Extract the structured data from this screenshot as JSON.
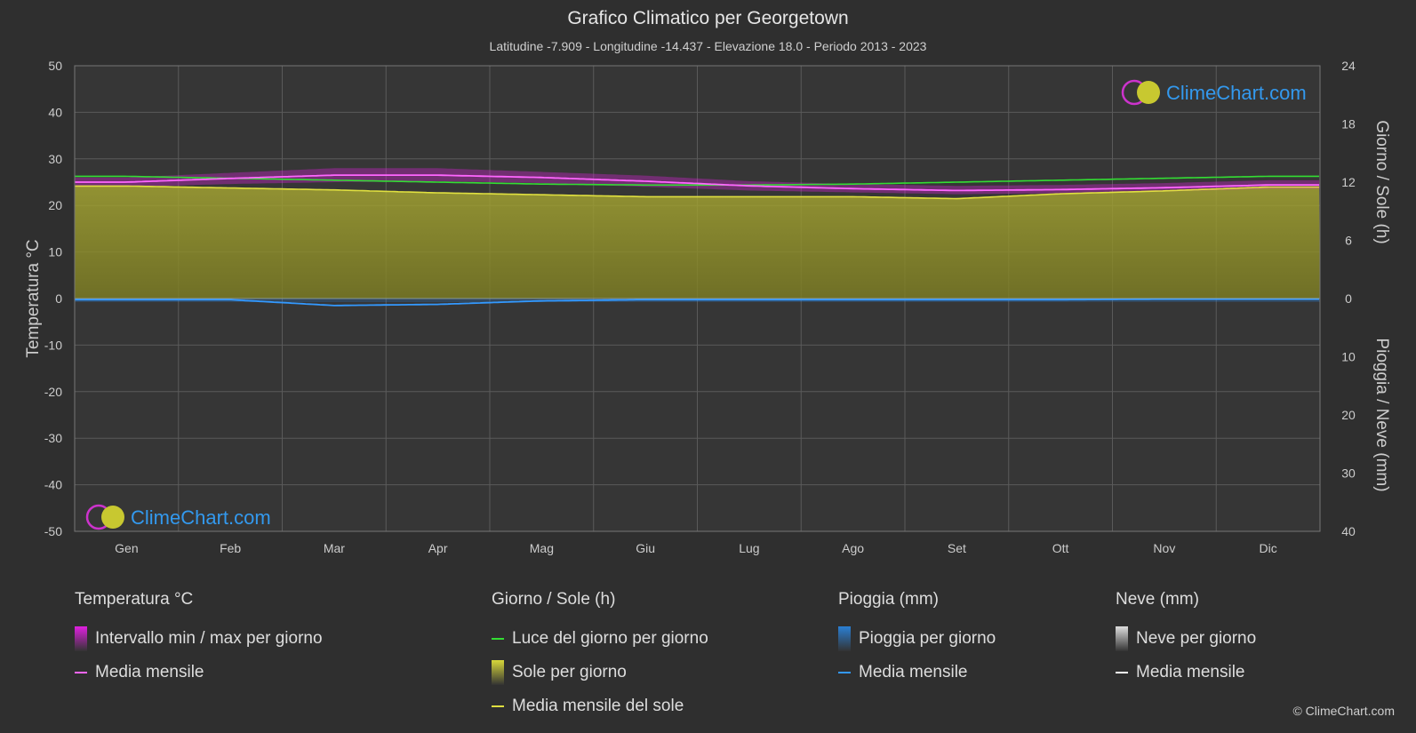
{
  "title": "Grafico Climatico per Georgetown",
  "subtitle": "Latitudine -7.909 - Longitudine -14.437 - Elevazione 18.0 - Periodo 2013 - 2023",
  "watermark": "ClimeChart.com",
  "copyright": "© ClimeChart.com",
  "colors": {
    "background": "#2f2f2f",
    "plot_bg": "#363636",
    "grid": "#5a5a5a",
    "temp_range": "#e020e0",
    "temp_mean": "#ff66ff",
    "daylight": "#33dd33",
    "sunshine_fill": "#9a9a2a",
    "sunshine_mean": "#e0e040",
    "rain": "#2a7fd4",
    "rain_mean": "#3399ff",
    "snow_mean": "#ffffff",
    "watermark": "#3399ee"
  },
  "legend": {
    "groups": [
      {
        "title": "Temperatura °C",
        "items": [
          {
            "label": "Intervallo min / max per giorno",
            "swatch": "box",
            "color": "#e020e0"
          },
          {
            "label": "Media mensile",
            "swatch": "line",
            "color": "#ff66ff"
          }
        ]
      },
      {
        "title": "Giorno / Sole (h)",
        "items": [
          {
            "label": "Luce del giorno per giorno",
            "swatch": "line",
            "color": "#33dd33"
          },
          {
            "label": "Sole per giorno",
            "swatch": "box",
            "color": "#d8d83a"
          },
          {
            "label": "Media mensile del sole",
            "swatch": "line",
            "color": "#e0e040"
          }
        ]
      },
      {
        "title": "Pioggia (mm)",
        "items": [
          {
            "label": "Pioggia per giorno",
            "swatch": "box",
            "color": "#2a7fd4"
          },
          {
            "label": "Media mensile",
            "swatch": "line",
            "color": "#3399ff"
          }
        ]
      },
      {
        "title": "Neve (mm)",
        "items": [
          {
            "label": "Neve per giorno",
            "swatch": "box",
            "color": "#dddddd"
          },
          {
            "label": "Media mensile",
            "swatch": "line",
            "color": "#ffffff"
          }
        ]
      }
    ]
  },
  "chart_data": {
    "type": "line",
    "categories": [
      "Gen",
      "Feb",
      "Mar",
      "Apr",
      "Mag",
      "Giu",
      "Lug",
      "Ago",
      "Set",
      "Ott",
      "Nov",
      "Dic"
    ],
    "y_left": {
      "label": "Temperatura °C",
      "range": [
        -50,
        50
      ],
      "ticks": [
        50,
        40,
        30,
        20,
        10,
        0,
        -10,
        -20,
        -30,
        -40,
        -50
      ]
    },
    "y_right_top": {
      "label": "Giorno / Sole (h)",
      "range": [
        0,
        24
      ],
      "ticks": [
        24,
        18,
        12,
        6,
        0
      ]
    },
    "y_right_bottom": {
      "label": "Pioggia / Neve (mm)",
      "range": [
        0,
        40
      ],
      "ticks": [
        0,
        10,
        20,
        30,
        40
      ]
    },
    "series": [
      {
        "name": "Media mensile",
        "axis": "temperature",
        "values": [
          25.0,
          25.8,
          26.5,
          26.5,
          26.0,
          25.2,
          24.2,
          23.6,
          23.2,
          23.4,
          23.8,
          24.4
        ]
      },
      {
        "name": "Luce del giorno per giorno",
        "axis": "hours",
        "values": [
          12.6,
          12.4,
          12.2,
          12.0,
          11.8,
          11.7,
          11.7,
          11.8,
          12.0,
          12.2,
          12.4,
          12.6
        ]
      },
      {
        "name": "Media mensile del sole",
        "axis": "hours",
        "values": [
          11.6,
          11.4,
          11.2,
          10.9,
          10.7,
          10.5,
          10.5,
          10.5,
          10.3,
          10.8,
          11.1,
          11.5
        ]
      },
      {
        "name": "Pioggia media mensile",
        "axis": "precipitation",
        "values": [
          0.2,
          0.2,
          1.2,
          1.0,
          0.4,
          0.2,
          0.2,
          0.2,
          0.2,
          0.2,
          0.1,
          0.1
        ]
      },
      {
        "name": "Neve media mensile",
        "axis": "precipitation",
        "values": [
          0,
          0,
          0,
          0,
          0,
          0,
          0,
          0,
          0,
          0,
          0,
          0
        ]
      }
    ],
    "temp_range": {
      "min": [
        24.0,
        24.6,
        25.0,
        25.2,
        24.8,
        24.0,
        23.2,
        22.8,
        22.4,
        22.6,
        23.0,
        23.6
      ],
      "max": [
        26.0,
        27.0,
        28.0,
        28.0,
        27.2,
        26.4,
        25.2,
        24.6,
        24.2,
        24.4,
        24.8,
        25.4
      ]
    },
    "grid": true
  }
}
